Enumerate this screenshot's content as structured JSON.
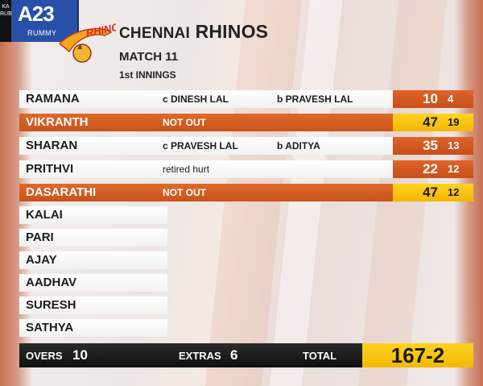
{
  "brand": {
    "sponsor_logo_text": "A23",
    "sponsor_sub": "RUMMY",
    "side_text": "KA RUB",
    "team_logo_text": "RHINOS"
  },
  "header": {
    "team_first": "CHENNAI",
    "team_second": "RHINOS",
    "match": "MATCH 11",
    "innings": "1st INNINGS"
  },
  "batting": [
    {
      "name": "RAMANA",
      "dismissal": "c DINESH LAL",
      "bowler": "b PRAVESH LAL",
      "runs": "10",
      "balls": "4",
      "not_out": false
    },
    {
      "name": "VIKRANTH",
      "dismissal": "NOT OUT",
      "bowler": "",
      "runs": "47",
      "balls": "19",
      "not_out": true
    },
    {
      "name": "SHARAN",
      "dismissal": "c PRAVESH LAL",
      "bowler": "b ADITYA",
      "runs": "35",
      "balls": "13",
      "not_out": false
    },
    {
      "name": "PRITHVI",
      "dismissal": "retired hurt",
      "bowler": "",
      "runs": "22",
      "balls": "12",
      "not_out": false
    },
    {
      "name": "DASARATHI",
      "dismissal": "NOT OUT",
      "bowler": "",
      "runs": "47",
      "balls": "12",
      "not_out": true
    }
  ],
  "did_not_bat": [
    "KALAI",
    "PARI",
    "AJAY",
    "AADHAV",
    "SURESH",
    "SATHYA"
  ],
  "footer": {
    "overs_label": "OVERS",
    "overs": "10",
    "extras_label": "EXTRAS",
    "extras": "6",
    "total_label": "TOTAL",
    "total": "167-2"
  },
  "colors": {
    "orange": "#d45f25",
    "yellow": "#f7c50f",
    "dark": "#141414"
  }
}
